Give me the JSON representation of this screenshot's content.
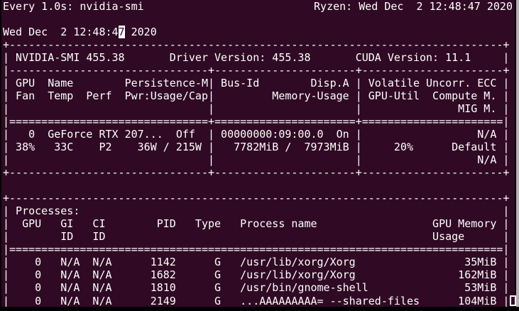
{
  "colors": {
    "background": "#300A24",
    "foreground": "#FFFFFF",
    "frame": "#000000",
    "scrollbar": "#B7B3AE"
  },
  "watch_header": {
    "left": "Every 1.0s: nvidia-smi",
    "right": "Ryzen: Wed Dec  2 12:48:47 2020"
  },
  "date_line": {
    "before_cursor": "Wed Dec  2 12:48:4",
    "cursor_char": "7",
    "after_cursor": " 2020"
  },
  "nvidia_smi": {
    "lines": [
      "+-----------------------------------------------------------------------------+",
      "| NVIDIA-SMI 455.38       Driver Version: 455.38       CUDA Version: 11.1     |",
      "|-------------------------------+----------------------+----------------------+",
      "| GPU  Name        Persistence-M| Bus-Id        Disp.A | Volatile Uncorr. ECC |",
      "| Fan  Temp  Perf  Pwr:Usage/Cap|         Memory-Usage | GPU-Util  Compute M. |",
      "|                               |                      |               MIG M. |",
      "|===============================+======================+======================|",
      "|   0  GeForce RTX 207...  Off  | 00000000:09:00.0  On |                  N/A |",
      "| 38%   33C    P2    36W / 215W |   7782MiB /  7973MiB |     20%      Default |",
      "|                               |                      |                  N/A |",
      "+-------------------------------+----------------------+----------------------+",
      "",
      "+-----------------------------------------------------------------------------+",
      "| Processes:                                                                  |",
      "|  GPU   GI   CI        PID   Type   Process name                  GPU Memory |",
      "|        ID   ID                                                   Usage      |",
      "|=============================================================================|",
      "|    0   N/A  N/A      1142      G   /usr/lib/xorg/Xorg                 35MiB |",
      "|    0   N/A  N/A      1682      G   /usr/lib/xorg/Xorg                162MiB |",
      "|    0   N/A  N/A      1810      G   /usr/bin/gnome-shell               53MiB |",
      "|    0   N/A  N/A      2149      G   ...AAAAAAAAA= --shared-files      104MiB |"
    ],
    "summary": {
      "nvidia_smi_version": "455.38",
      "driver_version": "455.38",
      "cuda_version": "11.1",
      "gpu": {
        "id": "0",
        "name": "GeForce RTX 207...",
        "persistence_m": "Off",
        "bus_id": "00000000:09:00.0",
        "disp_a": "On",
        "uncorr_ecc": "N/A",
        "fan": "38%",
        "temp": "33C",
        "perf": "P2",
        "pwr_usage_cap": "36W / 215W",
        "memory_usage": "7782MiB / 7973MiB",
        "gpu_util": "20%",
        "compute_mode": "Default",
        "mig_m": "N/A"
      },
      "process_columns": [
        "GPU",
        "GI ID",
        "CI ID",
        "PID",
        "Type",
        "Process name",
        "GPU Memory Usage"
      ],
      "processes": [
        {
          "gpu": "0",
          "gi_id": "N/A",
          "ci_id": "N/A",
          "pid": "1142",
          "type": "G",
          "name": "/usr/lib/xorg/Xorg",
          "memory": "35MiB"
        },
        {
          "gpu": "0",
          "gi_id": "N/A",
          "ci_id": "N/A",
          "pid": "1682",
          "type": "G",
          "name": "/usr/lib/xorg/Xorg",
          "memory": "162MiB"
        },
        {
          "gpu": "0",
          "gi_id": "N/A",
          "ci_id": "N/A",
          "pid": "1810",
          "type": "G",
          "name": "/usr/bin/gnome-shell",
          "memory": "53MiB"
        },
        {
          "gpu": "0",
          "gi_id": "N/A",
          "ci_id": "N/A",
          "pid": "2149",
          "type": "G",
          "name": "...AAAAAAAAA= --shared-files",
          "memory": "104MiB"
        }
      ]
    }
  }
}
